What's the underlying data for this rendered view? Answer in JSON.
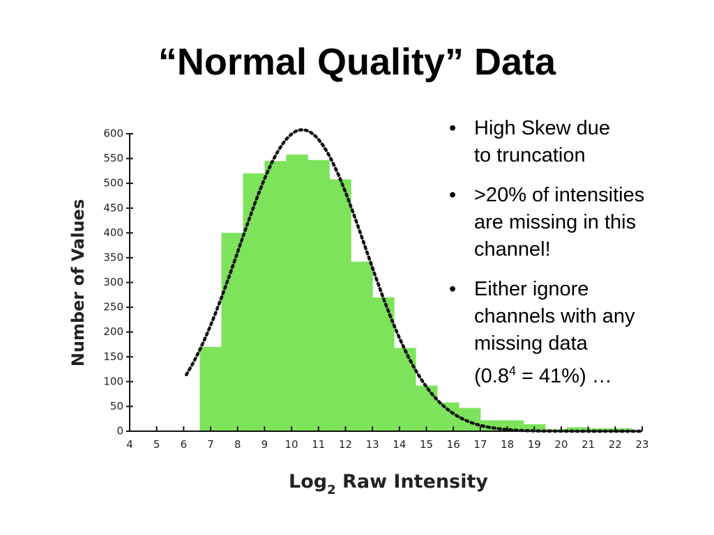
{
  "title": "“Normal Quality” Data",
  "bullets": [
    {
      "lines": [
        "High Skew due",
        "to truncation"
      ]
    },
    {
      "lines": [
        ">20% of intensities",
        "are missing in this",
        "channel!"
      ]
    },
    {
      "lines": [
        "Either ignore",
        "channels with any",
        "missing data"
      ],
      "formula": {
        "open": "(0.8",
        "exponent": "4",
        "rest": " = 41%) …"
      }
    }
  ],
  "bullet_symbol": "•",
  "chart_data": {
    "type": "bar",
    "xlabel_main": "Log",
    "xlabel_sub": "2",
    "xlabel_rest": " Raw Intensity",
    "ylabel": "Number of Values",
    "xlim": [
      4,
      23
    ],
    "ylim": [
      0,
      600
    ],
    "x_ticks": [
      4,
      5,
      6,
      7,
      8,
      9,
      10,
      11,
      12,
      13,
      14,
      15,
      16,
      17,
      18,
      19,
      20,
      21,
      22,
      23
    ],
    "y_ticks": [
      0,
      50,
      100,
      150,
      200,
      250,
      300,
      350,
      400,
      450,
      500,
      550,
      600
    ],
    "bin_width": 0.8,
    "bins": [
      {
        "x": 6.6,
        "value": 170
      },
      {
        "x": 7.4,
        "value": 400
      },
      {
        "x": 8.2,
        "value": 520
      },
      {
        "x": 9.0,
        "value": 545
      },
      {
        "x": 9.8,
        "value": 558
      },
      {
        "x": 10.6,
        "value": 547
      },
      {
        "x": 11.4,
        "value": 508
      },
      {
        "x": 12.2,
        "value": 342
      },
      {
        "x": 13.0,
        "value": 270
      },
      {
        "x": 13.8,
        "value": 168
      },
      {
        "x": 14.6,
        "value": 92
      },
      {
        "x": 15.4,
        "value": 58
      },
      {
        "x": 16.2,
        "value": 47
      },
      {
        "x": 17.0,
        "value": 22
      },
      {
        "x": 17.8,
        "value": 22
      },
      {
        "x": 18.6,
        "value": 14
      },
      {
        "x": 19.4,
        "value": 4
      },
      {
        "x": 20.2,
        "value": 8
      },
      {
        "x": 21.0,
        "value": 6
      },
      {
        "x": 21.8,
        "value": 6
      }
    ],
    "fit_curve": {
      "style": "dotted",
      "peak_x": 10.4,
      "peak_y": 608,
      "sigma": 2.35,
      "x_start": 6.1,
      "x_end": 23
    },
    "bar_color": "#7de35a",
    "curve_color": "#111111"
  }
}
